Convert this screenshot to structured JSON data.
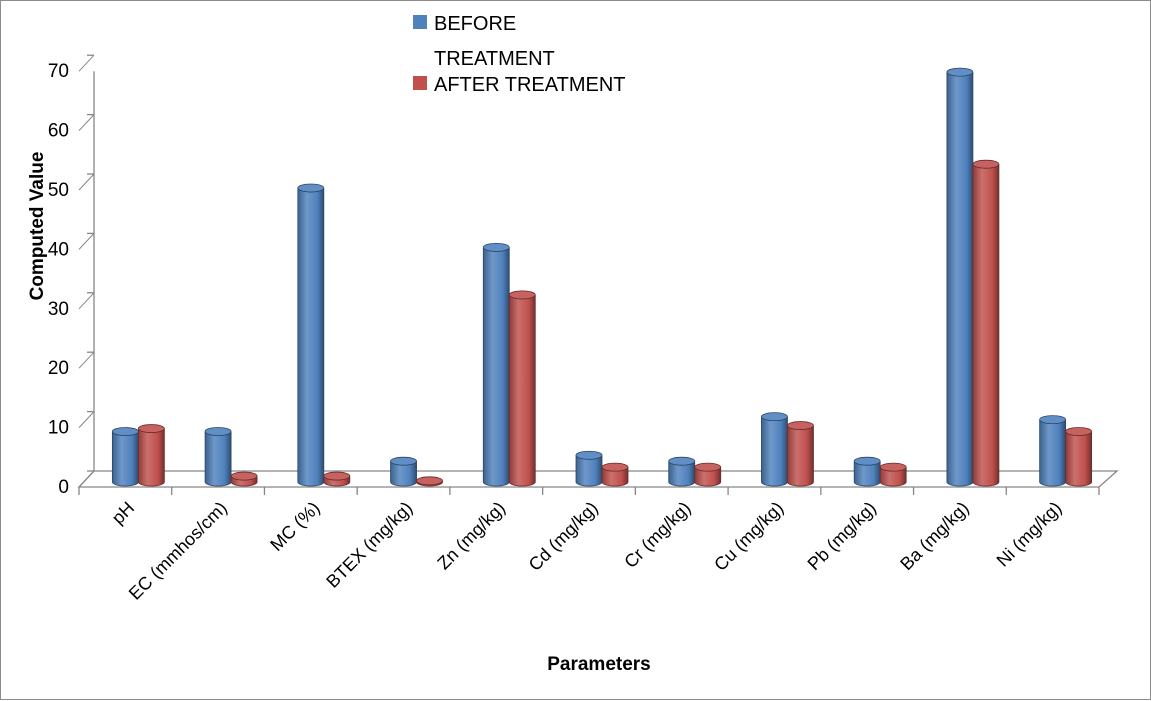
{
  "chart_data": {
    "type": "bar",
    "title": "",
    "xlabel": "Parameters",
    "ylabel": "Computed Value",
    "ylim": [
      0,
      70
    ],
    "yticks": [
      0,
      10,
      20,
      30,
      40,
      50,
      60,
      70
    ],
    "grid": false,
    "legend_position": "top-center",
    "style": "3d-cylinder",
    "categories": [
      "pH",
      "EC (mmhos/cm)",
      "MC (%)",
      "BTEX (mg/kg)",
      "Zn (mg/kg)",
      "Cd (mg/kg)",
      "Cr (mg/kg)",
      "Cu (mg/kg)",
      "Pb (mg/kg)",
      "Ba (mg/kg)",
      "Ni (mg/kg)"
    ],
    "series": [
      {
        "name": "BEFORE TREATMENT",
        "legend_lines": [
          "BEFORE",
          "TREATMENT"
        ],
        "color": "#4f81bd",
        "values": [
          8.5,
          8.5,
          49.5,
          3.5,
          39.5,
          4.5,
          3.5,
          11,
          3.5,
          69,
          10.5
        ]
      },
      {
        "name": "AFTER TREATMENT",
        "legend_lines": [
          "AFTER TREATMENT"
        ],
        "color": "#c0504d",
        "values": [
          9,
          1,
          1,
          0.2,
          31.5,
          2.5,
          2.5,
          9.5,
          2.5,
          53.5,
          8.5
        ]
      }
    ]
  }
}
